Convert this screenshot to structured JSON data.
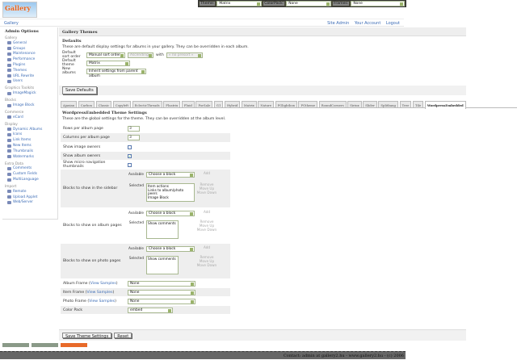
{
  "logo_text": "Gallery",
  "topbar": {
    "theme_label": "Theme:",
    "theme_value": "Matrix",
    "colorpack_label": "ColorPack:",
    "colorpack_value": "None",
    "frames_label": "Frames:",
    "frames_value": "None"
  },
  "breadcrumb": "Gallery",
  "header_links": [
    "Site Admin",
    "Your Account",
    "Logout"
  ],
  "sidebar": {
    "title": "Admin Options",
    "groups": [
      {
        "label": "Gallery",
        "items": [
          "General",
          "Groups",
          "Maintenance",
          "Performance",
          "Plugins",
          "Themes",
          "URL Rewrite",
          "Users"
        ]
      },
      {
        "label": "Graphics Toolkits",
        "items": [
          "ImageMagick"
        ]
      },
      {
        "label": "Blocks",
        "items": [
          "Image Block"
        ]
      },
      {
        "label": "Commerce",
        "items": [
          "eCard"
        ]
      },
      {
        "label": "Display",
        "items": [
          "Dynamic Albums",
          "Icons",
          "Link Items",
          "New Items",
          "Thumbnails",
          "Watermarks"
        ]
      },
      {
        "label": "Extra Data",
        "items": [
          "Comments",
          "Custom Fields",
          "MultiLanguage"
        ]
      },
      {
        "label": "Import",
        "items": [
          "Remote",
          "Upload Applet",
          "Web/Server"
        ]
      }
    ],
    "current": "Themes"
  },
  "main": {
    "title": "Gallery Themes",
    "defaults_heading": "Defaults",
    "defaults_desc": "These are default display settings for albums in your gallery. They can be overridden in each album.",
    "sort_label": "Default sort order",
    "sort_value": "Manual sort order",
    "sort_dir": "Ascending",
    "with_label": "with",
    "with_value": "« no presort »",
    "theme_label": "Default theme",
    "theme_value": "Matrix",
    "new_albums_label": "New albums",
    "new_albums_value": "Inherit settings from parent album",
    "save_defaults": "Save Defaults"
  },
  "tabs": [
    "Ajaxian",
    "Carbon",
    "Classic",
    "Copyleft",
    "EclecticThreads",
    "Floatrix",
    "Fluid",
    "ForSale",
    "G1",
    "Hybrid",
    "Matrix",
    "Nature",
    "PGlightbox",
    "PGtheme",
    "RoundCorners",
    "Siriux",
    "Slider",
    "Splitbang",
    "Tree",
    "Tile",
    "WordpressEmbedded"
  ],
  "active_tab": "WordpressEmbedded",
  "theme_settings": {
    "heading": "WordpressEmbedded Theme Settings",
    "desc": "These are the global settings for the theme. They can be overridden at the album level.",
    "rows_label": "Rows per album page",
    "rows_value": "3",
    "cols_label": "Columns per album page",
    "cols_value": "3",
    "owners_label": "Show image owners",
    "owners_checked": false,
    "album_owners_label": "Show album owners",
    "album_owners_checked": true,
    "micro_label": "Show micro navigation thumbnails",
    "micro_checked": false,
    "available_label": "Available",
    "selected_label": "Selected",
    "choose": "Choose a block",
    "add": "Add",
    "remove": "Remove",
    "move_up": "Move Up",
    "move_down": "Move Down",
    "blocks": [
      {
        "label": "Blocks to show in the sidebar",
        "selected": [
          "Item actions",
          "Links to album/photo peers",
          "Image Block"
        ]
      },
      {
        "label": "Blocks to show on album pages",
        "selected": [
          "Show comments"
        ]
      },
      {
        "label": "Blocks to show on photo pages",
        "selected": [
          "Show comments"
        ]
      }
    ],
    "view_samples": "View Samples",
    "album_frame_label": "Album Frame",
    "album_frame_value": "None",
    "item_frame_label": "Item Frame",
    "item_frame_value": "None",
    "photo_frame_label": "Photo Frame",
    "photo_frame_value": "None",
    "color_pack_label": "Color Pack",
    "color_pack_value": "embed",
    "save": "Save Theme Settings",
    "reset": "Reset"
  },
  "footer": "Contact: admin at gallery2.hu - www.gallery2.hu - (c) 2006",
  "colors": {
    "link": "#3b6bb5",
    "panel": "#f1f1f1",
    "footer": "#666666"
  }
}
